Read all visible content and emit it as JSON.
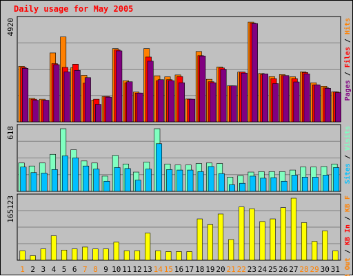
{
  "chart_data": {
    "type": "bar",
    "title": "Daily usage for May 2005",
    "categories": [
      "1",
      "2",
      "3",
      "4",
      "5",
      "6",
      "7",
      "8",
      "9",
      "10",
      "11",
      "12",
      "13",
      "14",
      "15",
      "16",
      "17",
      "18",
      "19",
      "20",
      "21",
      "22",
      "23",
      "24",
      "25",
      "26",
      "27",
      "28",
      "29",
      "30",
      "31"
    ],
    "weekend_days": [
      "1",
      "7",
      "8",
      "14",
      "15",
      "21",
      "22",
      "28",
      "29"
    ],
    "colors": {
      "hits": "#ff8000",
      "files": "#ff0000",
      "pages": "#800080",
      "visits": "#80ffc0",
      "sites": "#00c0ff",
      "kbin": "#ffff00",
      "weekday_label": "#000000",
      "weekend_label": "#ff8000"
    },
    "panels": [
      {
        "id": "hits_files_pages",
        "ymax_label": "4920",
        "ymax": 4920,
        "legend": [
          {
            "text": "Hits",
            "color": "#ff8000"
          },
          {
            "text": " / ",
            "color": "#000000"
          },
          {
            "text": "Files",
            "color": "#ff0000"
          },
          {
            "text": " / ",
            "color": "#000000"
          },
          {
            "text": "Pages",
            "color": "#800080"
          }
        ],
        "series": [
          {
            "name": "Hits",
            "color": "#ff8000",
            "values": [
              2700,
              1140,
              1100,
              3350,
              4130,
              2640,
              2260,
              1060,
              1230,
              3560,
              2000,
              1450,
              3560,
              2240,
              2190,
              2280,
              1110,
              3420,
              2070,
              2670,
              1750,
              2420,
              4850,
              2350,
              2200,
              2300,
              2190,
              2430,
              1900,
              1730,
              1460
            ]
          },
          {
            "name": "Files",
            "color": "#ff0000",
            "values": [
              2650,
              1100,
              1050,
              2830,
              2650,
              2800,
              1880,
              1100,
              1230,
              3500,
              1900,
              1400,
              3150,
              2000,
              2050,
              2200,
              1100,
              3220,
              1950,
              2620,
              1750,
              2420,
              4800,
              2300,
              2100,
              2250,
              2100,
              2400,
              1800,
              1650,
              1450
            ]
          },
          {
            "name": "Pages",
            "color": "#800080",
            "values": [
              2600,
              1050,
              1050,
              2780,
              2430,
              2500,
              2150,
              850,
              1200,
              3450,
              1950,
              1400,
              2950,
              2050,
              2000,
              1900,
              1100,
              3200,
              1900,
              2550,
              1750,
              2370,
              4780,
              2330,
              1860,
              2250,
              1940,
              2330,
              1800,
              1630,
              1420
            ]
          }
        ]
      },
      {
        "id": "visits_sites",
        "ymax_label": "618",
        "ymax": 618,
        "legend": [
          {
            "text": "Visits",
            "color": "#80ffc0"
          },
          {
            "text": " / ",
            "color": "#000000"
          },
          {
            "text": "Sites",
            "color": "#00c0ff"
          }
        ],
        "series": [
          {
            "name": "Visits",
            "color": "#80ffc0",
            "values": [
              280,
              250,
              280,
              365,
              618,
              410,
              300,
              280,
              150,
              355,
              270,
              190,
              290,
              618,
              270,
              260,
              260,
              275,
              280,
              275,
              140,
              155,
              190,
              195,
              195,
              195,
              210,
              240,
              240,
              245,
              270
            ]
          },
          {
            "name": "Sites",
            "color": "#00c0ff",
            "values": [
              240,
              185,
              180,
              215,
              350,
              330,
              250,
              220,
              100,
              235,
              225,
              110,
              220,
              470,
              215,
              210,
              210,
              195,
              245,
              175,
              65,
              80,
              150,
              130,
              135,
              100,
              160,
              140,
              140,
              160,
              235
            ]
          }
        ]
      },
      {
        "id": "kbytes",
        "ymax_label": "165123",
        "ymax": 165123,
        "legend": [
          {
            "text": "KB F",
            "color": "#ff8000"
          },
          {
            "text": " / ",
            "color": "#000000"
          },
          {
            "text": "KB In",
            "color": "#ff0000"
          },
          {
            "text": " / ",
            "color": "#000000"
          },
          {
            "text": "KB Out",
            "color": "#ff8000"
          }
        ],
        "series": [
          {
            "name": "KB In",
            "color": "#ffff00",
            "values": [
              25000,
              12000,
              30000,
              65000,
              27000,
              30000,
              35000,
              30000,
              30000,
              48000,
              25000,
              25000,
              72000,
              25000,
              23000,
              23000,
              23000,
              110000,
              95000,
              123000,
              55000,
              142000,
              137000,
              103000,
              110000,
              140000,
              165123,
              100000,
              50000,
              78000,
              25000
            ]
          }
        ]
      }
    ]
  }
}
